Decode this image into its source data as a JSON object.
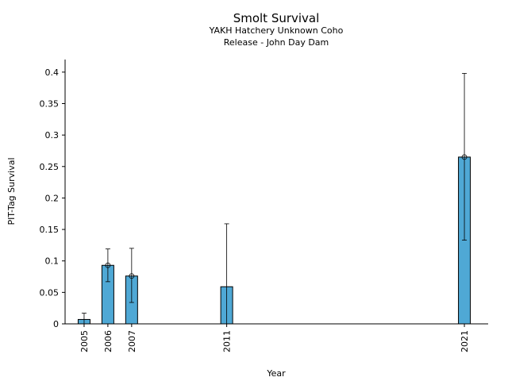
{
  "chart_data": {
    "type": "bar",
    "title": "Smolt Survival",
    "subtitle_line1": "YAKH Hatchery Unknown Coho",
    "subtitle_line2": "Release - John Day Dam",
    "xlabel": "Year",
    "ylabel": "PIT-Tag Survival",
    "categories": [
      "2005",
      "2006",
      "2007",
      "2011",
      "2021"
    ],
    "x": [
      2005,
      2006,
      2007,
      2011,
      2021
    ],
    "values": [
      0.007,
      0.093,
      0.076,
      0.059,
      0.265
    ],
    "error_low": [
      0.0,
      0.067,
      0.034,
      0.0,
      0.133
    ],
    "error_high": [
      0.017,
      0.119,
      0.12,
      0.159,
      0.398
    ],
    "markers": [
      false,
      true,
      true,
      false,
      true
    ],
    "ylim": [
      0,
      0.42
    ],
    "xlim": [
      2004.2,
      2022.0
    ],
    "yticks": [
      0,
      0.05,
      0.1,
      0.15,
      0.2,
      0.25,
      0.3,
      0.35,
      0.4
    ],
    "ytick_labels": [
      "0",
      "0.05",
      "0.1",
      "0.15",
      "0.2",
      "0.25",
      "0.3",
      "0.35",
      "0.4"
    ],
    "grid": false,
    "bar_color": "#4fa8d5",
    "bar_edge_color": "#000000"
  }
}
